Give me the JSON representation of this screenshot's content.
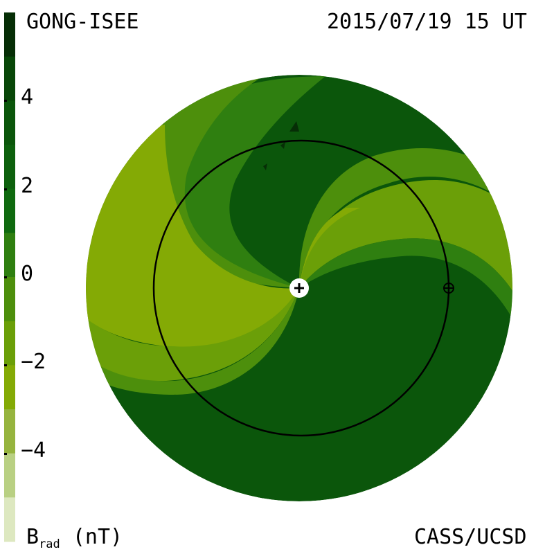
{
  "header": {
    "source": "GONG-ISEE",
    "timestamp": "2015/07/19 15 UT"
  },
  "footer": {
    "quantity": "B",
    "quantity_subscript": "rad",
    "unit": "(nT)",
    "credit": "CASS/UCSD"
  },
  "colorbar": {
    "ticks": [
      {
        "value": 4,
        "label": "4"
      },
      {
        "value": 2,
        "label": "2"
      },
      {
        "value": 0,
        "label": "0"
      },
      {
        "value": -2,
        "label": "−2"
      },
      {
        "value": -4,
        "label": "−4"
      }
    ],
    "range": [
      -6,
      6
    ],
    "colors_top_to_bottom": [
      "#062e06",
      "#084708",
      "#0b560b",
      "#0d600d",
      "#0f6a0f",
      "#2f7f10",
      "#4d8f0c",
      "#6b9f08",
      "#84aa05",
      "#96b43e",
      "#b9d083",
      "#dde8c0"
    ]
  },
  "map": {
    "sun_marker": "sun-plus-icon",
    "earth_marker": "earth-circle-plus-icon",
    "colors": {
      "positive_dark": "#0b560b",
      "positive_medium": "#2f7f10",
      "neutral": "#4d8f0c",
      "negative_light": "#6b9f08",
      "negative_lightest": "#84aa05",
      "orbit_line": "#000000"
    }
  }
}
